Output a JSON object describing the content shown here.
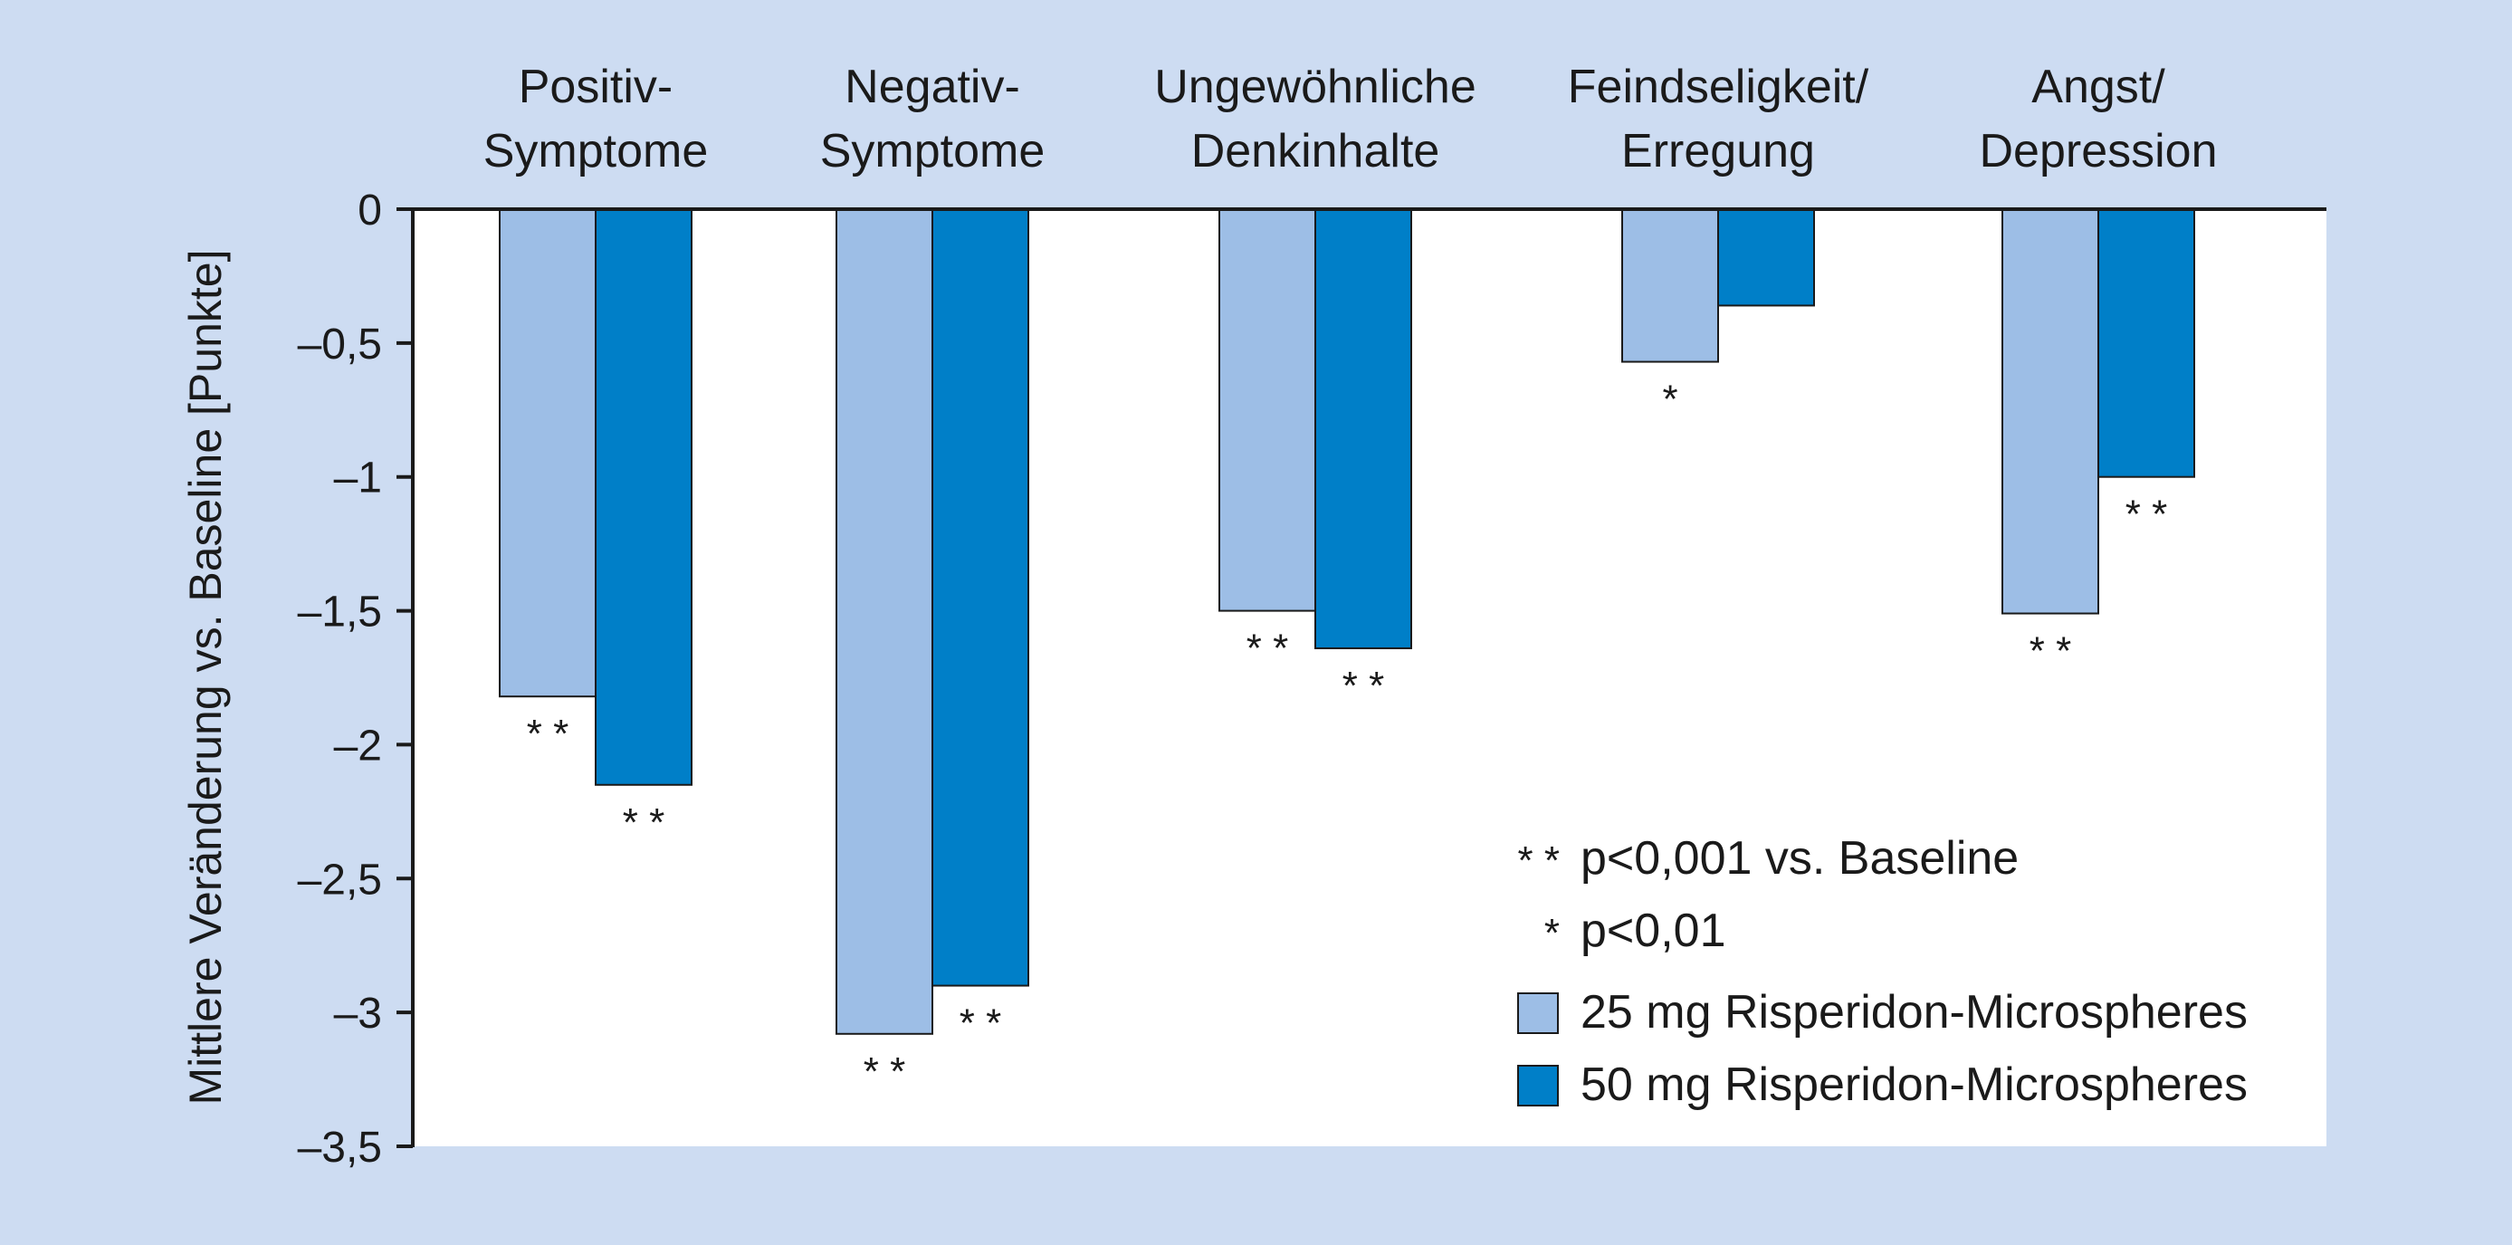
{
  "chart_data": {
    "type": "bar",
    "ylabel": "Mittlere Veränderung vs. Baseline [Punkte]",
    "ylim": [
      -3.5,
      0
    ],
    "y_ticks": [
      "0",
      "–0,5",
      "–1",
      "–1,5",
      "–2",
      "–2,5",
      "–3",
      "–3,5"
    ],
    "categories": [
      [
        "Positiv-",
        "Symptome"
      ],
      [
        "Negativ-",
        "Symptome"
      ],
      [
        "Ungewöhnliche",
        "Denkinhalte"
      ],
      [
        "Feindseligkeit/",
        "Erregung"
      ],
      [
        "Angst/",
        "Depression"
      ]
    ],
    "series": [
      {
        "name": "25 mg Risperidon-Microspheres",
        "color": "#9dbee6",
        "values": [
          -1.82,
          -3.08,
          -1.5,
          -0.57,
          -1.51
        ],
        "annotations": [
          "**",
          "**",
          "**",
          "*",
          "**"
        ]
      },
      {
        "name": "50 mg Risperidon-Microspheres",
        "color": "#007fc8",
        "values": [
          -2.15,
          -2.9,
          -1.64,
          -0.36,
          -1.0
        ],
        "annotations": [
          "**",
          "**",
          "**",
          "",
          "**"
        ]
      }
    ],
    "legend": {
      "position": "bottom-right",
      "notes": [
        {
          "symbol": "**",
          "text": "p<0,001 vs. Baseline"
        },
        {
          "symbol": "*",
          "text": "p<0,01"
        }
      ]
    },
    "grid": false
  }
}
